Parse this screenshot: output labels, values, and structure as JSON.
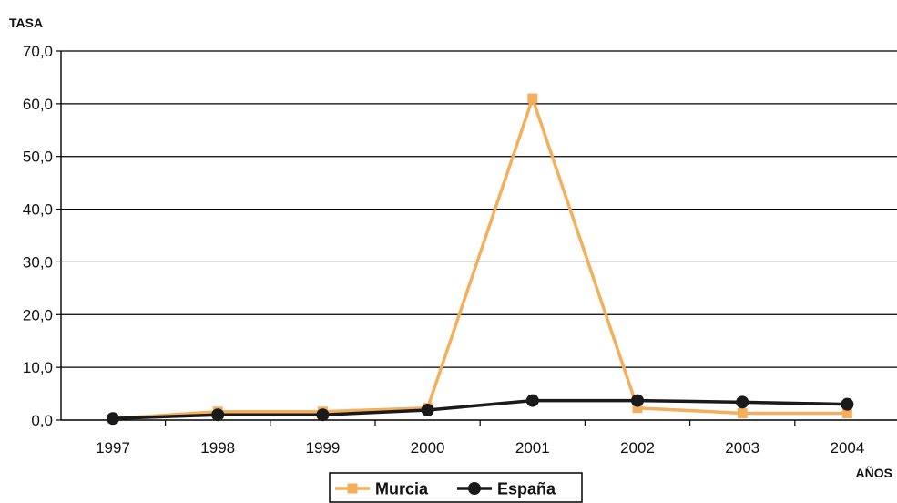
{
  "chart_data": {
    "type": "line",
    "ylabel": "TASA",
    "xlabel": "AÑOS",
    "categories": [
      "1997",
      "1998",
      "1999",
      "2000",
      "2001",
      "2002",
      "2003",
      "2004"
    ],
    "ylim": [
      0,
      70
    ],
    "y_ticks": [
      "0,0",
      "10,0",
      "20,0",
      "30,0",
      "40,0",
      "50,0",
      "60,0",
      "70,0"
    ],
    "grid": true,
    "legend_position": "bottom",
    "series": [
      {
        "name": "Murcia",
        "color": "#F5AE5C",
        "marker": "square",
        "values": [
          0.3,
          1.6,
          1.6,
          2.3,
          61.0,
          2.3,
          1.3,
          1.3
        ]
      },
      {
        "name": "España",
        "color": "#1A1A1A",
        "marker": "circle",
        "values": [
          0.3,
          1.0,
          1.0,
          1.9,
          3.7,
          3.7,
          3.4,
          3.0
        ]
      }
    ]
  }
}
